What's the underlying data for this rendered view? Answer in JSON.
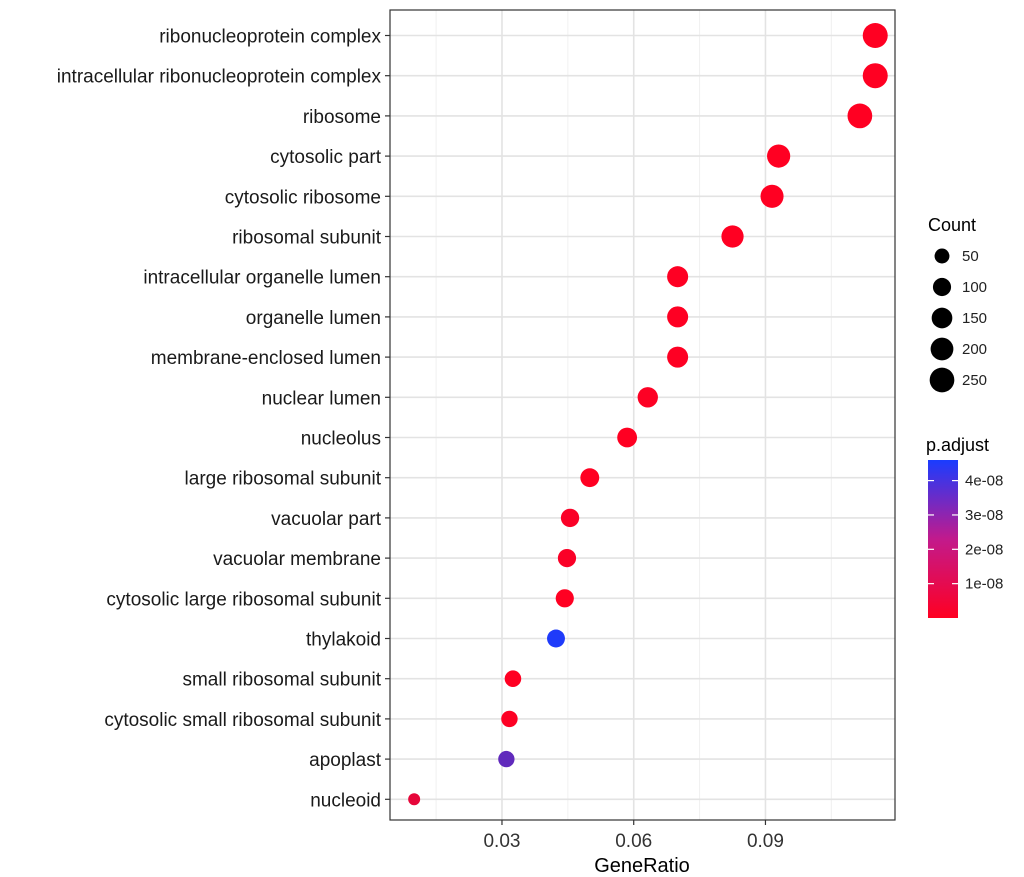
{
  "chart_data": {
    "type": "scatter",
    "xlabel": "GeneRatio",
    "ylabel": "",
    "xlim": [
      0.0045,
      0.1195
    ],
    "x_ticks": [
      0.03,
      0.06,
      0.09
    ],
    "x_tick_labels": [
      "0.03",
      "0.06",
      "0.09"
    ],
    "grid": true,
    "legend_position": "right",
    "categories": [
      "ribonucleoprotein complex",
      "intracellular ribonucleoprotein complex",
      "ribosome",
      "cytosolic part",
      "cytosolic ribosome",
      "ribosomal subunit",
      "intracellular organelle lumen",
      "organelle lumen",
      "membrane-enclosed lumen",
      "nuclear lumen",
      "nucleolus",
      "large ribosomal subunit",
      "vacuolar part",
      "vacuolar membrane",
      "cytosolic large ribosomal subunit",
      "thylakoid",
      "small ribosomal subunit",
      "cytosolic small ribosomal subunit",
      "apoplast",
      "nucleoid"
    ],
    "points": [
      {
        "term": "ribonucleoprotein complex",
        "x": 0.115,
        "count": 260,
        "p_adjust": 1e-30
      },
      {
        "term": "intracellular ribonucleoprotein complex",
        "x": 0.115,
        "count": 260,
        "p_adjust": 1e-30
      },
      {
        "term": "ribosome",
        "x": 0.1115,
        "count": 252,
        "p_adjust": 1e-30
      },
      {
        "term": "cytosolic part",
        "x": 0.093,
        "count": 210,
        "p_adjust": 1e-30
      },
      {
        "term": "cytosolic ribosome",
        "x": 0.0915,
        "count": 207,
        "p_adjust": 1e-30
      },
      {
        "term": "ribosomal subunit",
        "x": 0.0825,
        "count": 186,
        "p_adjust": 1e-30
      },
      {
        "term": "intracellular organelle lumen",
        "x": 0.07,
        "count": 158,
        "p_adjust": 2e-10
      },
      {
        "term": "organelle lumen",
        "x": 0.07,
        "count": 158,
        "p_adjust": 2e-10
      },
      {
        "term": "membrane-enclosed lumen",
        "x": 0.07,
        "count": 158,
        "p_adjust": 2e-10
      },
      {
        "term": "nuclear lumen",
        "x": 0.0632,
        "count": 143,
        "p_adjust": 5e-10
      },
      {
        "term": "nucleolus",
        "x": 0.0585,
        "count": 132,
        "p_adjust": 1e-20
      },
      {
        "term": "large ribosomal subunit",
        "x": 0.05,
        "count": 113,
        "p_adjust": 1e-20
      },
      {
        "term": "vacuolar part",
        "x": 0.0455,
        "count": 103,
        "p_adjust": 1e-09
      },
      {
        "term": "vacuolar membrane",
        "x": 0.0448,
        "count": 101,
        "p_adjust": 1e-09
      },
      {
        "term": "cytosolic large ribosomal subunit",
        "x": 0.0443,
        "count": 100,
        "p_adjust": 1e-20
      },
      {
        "term": "thylakoid",
        "x": 0.0423,
        "count": 96,
        "p_adjust": 4.5e-08
      },
      {
        "term": "small ribosomal subunit",
        "x": 0.0325,
        "count": 73,
        "p_adjust": 1e-10
      },
      {
        "term": "cytosolic small ribosomal subunit",
        "x": 0.0317,
        "count": 71,
        "p_adjust": 5e-10
      },
      {
        "term": "apoplast",
        "x": 0.031,
        "count": 70,
        "p_adjust": 3.2e-08
      },
      {
        "term": "nucleoid",
        "x": 0.01,
        "count": 20,
        "p_adjust": 5e-09
      }
    ],
    "size_legend": {
      "title": "Count",
      "breaks": [
        50,
        100,
        150,
        200,
        250
      ],
      "labels": [
        "50",
        "100",
        "150",
        "200",
        "250"
      ]
    },
    "color_legend": {
      "title": "p.adjust",
      "range": [
        0,
        4.6e-08
      ],
      "breaks": [
        1e-08,
        2e-08,
        3e-08,
        4e-08
      ],
      "labels": [
        "1e-08",
        "2e-08",
        "3e-08",
        "4e-08"
      ],
      "low_color": "#ff0022",
      "high_color": "#1a3cff"
    }
  }
}
